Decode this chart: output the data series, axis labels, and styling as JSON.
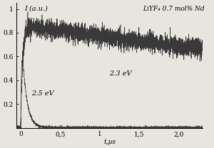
{
  "title_annotation": "LiYF₄ 0.7 mol% Nd",
  "xlabel": "t,µs",
  "ylabel": "I (a.u.)",
  "xlim": [
    -0.05,
    2.3
  ],
  "ylim": [
    0,
    1.05
  ],
  "xticks": [
    0,
    0.5,
    1.0,
    1.5,
    2.0
  ],
  "xticklabels": [
    "0",
    "0,5",
    "1",
    "1,5",
    "2,0"
  ],
  "yticks": [
    0.2,
    0.4,
    0.6,
    0.8,
    1.0
  ],
  "yticklabels": [
    "0.2",
    "0.4",
    "0.6",
    "0.8",
    "1"
  ],
  "label_23eV": "2.3 eV",
  "label_25eV": "2.5 eV",
  "curve_color": "#303030",
  "background_color": "#e8e5e0",
  "noise_seed_23": 42,
  "noise_seed_25": 99
}
